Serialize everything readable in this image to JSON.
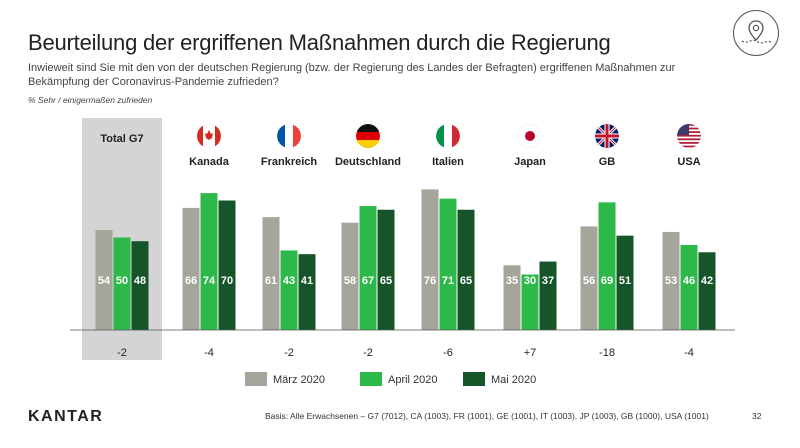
{
  "slide": {
    "title": "Beurteilung der ergriffenen Maßnahmen durch die Regierung",
    "subtitle": "Inwieweit sind Sie mit den von der deutschen Regierung (bzw. der Regierung des Landes der Befragten) ergriffenen Maßnahmen zur Bekämpfung der Coronavirus-Pandemie zufrieden?",
    "note": "% Sehr / einigermaßen zufrieden",
    "brand": "KANTAR",
    "basis": "Basis: Alle Erwachsenen – G7 (7012), CA (1003), FR (1001), GE (1001), IT (1003), JP (1003), GB (1000), USA (1001)",
    "page_number": "32"
  },
  "colors": {
    "maerz": "#a6a59b",
    "april": "#2db84a",
    "mai": "#16552a",
    "total_bg": "#d4d4d4",
    "axis": "#555555"
  },
  "chart_data": {
    "type": "bar",
    "categories": [
      "Total G7",
      "Kanada",
      "Frankreich",
      "Deutschland",
      "Italien",
      "Japan",
      "GB",
      "USA"
    ],
    "flags": [
      "",
      "canada-flag-icon",
      "france-flag-icon",
      "germany-flag-icon",
      "italy-flag-icon",
      "japan-flag-icon",
      "uk-flag-icon",
      "usa-flag-icon"
    ],
    "series": [
      {
        "name": "März 2020",
        "color_key": "maerz",
        "values": [
          54,
          66,
          61,
          58,
          76,
          35,
          56,
          53
        ]
      },
      {
        "name": "April 2020",
        "color_key": "april",
        "values": [
          50,
          74,
          43,
          67,
          71,
          30,
          69,
          46
        ]
      },
      {
        "name": "Mai 2020",
        "color_key": "mai",
        "values": [
          48,
          70,
          41,
          65,
          65,
          37,
          51,
          42
        ]
      }
    ],
    "changes": [
      "-2",
      "-4",
      "-2",
      "-2",
      "-6",
      "+7",
      "-18",
      "-4"
    ],
    "ylim": [
      0,
      100
    ],
    "legend_position": "bottom-center"
  }
}
